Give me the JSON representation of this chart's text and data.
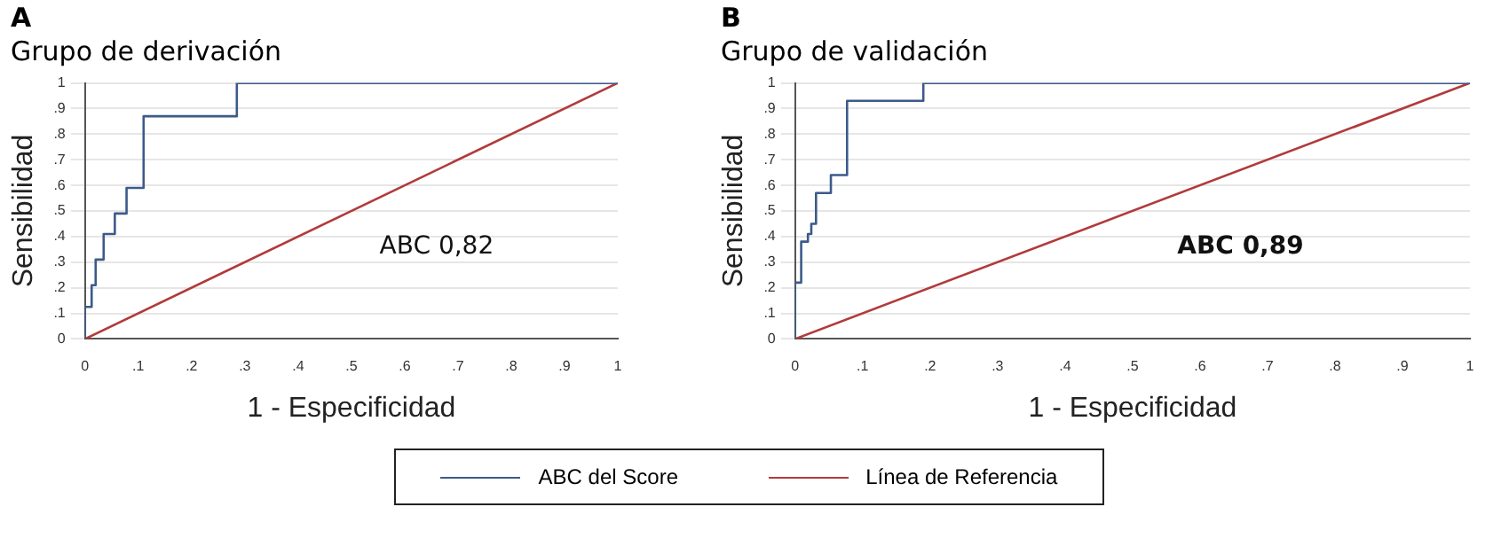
{
  "chart_data": [
    {
      "type": "line",
      "title": "A",
      "subtitle": "Grupo de derivación",
      "xlabel": "1 - Especificidad",
      "ylabel": "Sensibilidad",
      "xlim": [
        0,
        1
      ],
      "ylim": [
        0,
        1
      ],
      "xticks": [
        {
          "value": 0,
          "label": "0"
        },
        {
          "value": 0.1,
          "label": ".1"
        },
        {
          "value": 0.2,
          "label": ".2"
        },
        {
          "value": 0.3,
          "label": ".3"
        },
        {
          "value": 0.4,
          "label": ".4"
        },
        {
          "value": 0.5,
          "label": ".5"
        },
        {
          "value": 0.6,
          "label": ".6"
        },
        {
          "value": 0.7,
          "label": ".7"
        },
        {
          "value": 0.8,
          "label": ".8"
        },
        {
          "value": 0.9,
          "label": ".9"
        },
        {
          "value": 1,
          "label": "1"
        }
      ],
      "yticks": [
        {
          "value": 0,
          "label": "0"
        },
        {
          "value": 0.1,
          "label": ".1"
        },
        {
          "value": 0.2,
          "label": ".2"
        },
        {
          "value": 0.3,
          "label": ".3"
        },
        {
          "value": 0.4,
          "label": ".4"
        },
        {
          "value": 0.5,
          "label": ".5"
        },
        {
          "value": 0.6,
          "label": ".6"
        },
        {
          "value": 0.7,
          "label": ".7"
        },
        {
          "value": 0.8,
          "label": ".8"
        },
        {
          "value": 0.9,
          "label": ".9"
        },
        {
          "value": 1,
          "label": "1"
        }
      ],
      "grid": "y",
      "legend": "bottom",
      "marker": "none",
      "annotations": [
        "ABC 0,82"
      ],
      "series": [
        {
          "name": "ABC del Score",
          "type": "step",
          "color": "#3c5a8a",
          "x": [
            0,
            0.0125,
            0.02,
            0.035,
            0.056,
            0.078,
            0.11,
            0.285,
            0.53,
            1
          ],
          "values": [
            0,
            0.125,
            0.21,
            0.31,
            0.41,
            0.49,
            0.59,
            0.87,
            1,
            1
          ]
        },
        {
          "name": "Línea de Referencia",
          "type": "line",
          "color": "#b23a3a",
          "x": [
            0,
            1
          ],
          "values": [
            0,
            1
          ]
        }
      ]
    },
    {
      "type": "line",
      "title": "B",
      "subtitle": "Grupo de validación",
      "xlabel": "1 - Especificidad",
      "ylabel": "Sensibilidad",
      "xlim": [
        0,
        1
      ],
      "ylim": [
        0,
        1
      ],
      "xticks": [
        {
          "value": 0,
          "label": "0"
        },
        {
          "value": 0.1,
          "label": ".1"
        },
        {
          "value": 0.2,
          "label": ".2"
        },
        {
          "value": 0.3,
          "label": ".3"
        },
        {
          "value": 0.4,
          "label": ".4"
        },
        {
          "value": 0.5,
          "label": ".5"
        },
        {
          "value": 0.6,
          "label": ".6"
        },
        {
          "value": 0.7,
          "label": ".7"
        },
        {
          "value": 0.8,
          "label": ".8"
        },
        {
          "value": 0.9,
          "label": ".9"
        },
        {
          "value": 1,
          "label": "1"
        }
      ],
      "yticks": [
        {
          "value": 0,
          "label": "0"
        },
        {
          "value": 0.1,
          "label": ".1"
        },
        {
          "value": 0.2,
          "label": ".2"
        },
        {
          "value": 0.3,
          "label": ".3"
        },
        {
          "value": 0.4,
          "label": ".4"
        },
        {
          "value": 0.5,
          "label": ".5"
        },
        {
          "value": 0.6,
          "label": ".6"
        },
        {
          "value": 0.7,
          "label": ".7"
        },
        {
          "value": 0.8,
          "label": ".8"
        },
        {
          "value": 0.9,
          "label": ".9"
        },
        {
          "value": 1,
          "label": "1"
        }
      ],
      "grid": "y",
      "legend": "bottom",
      "marker": "none",
      "annotations": [
        "ABC 0,89"
      ],
      "series": [
        {
          "name": "ABC del Score",
          "type": "step",
          "color": "#3c5a8a",
          "x": [
            0,
            0.009,
            0.019,
            0.024,
            0.031,
            0.053,
            0.077,
            0.19,
            0.415,
            1
          ],
          "values": [
            0,
            0.22,
            0.38,
            0.41,
            0.45,
            0.57,
            0.64,
            0.93,
            1,
            1
          ]
        },
        {
          "name": "Línea de Referencia",
          "type": "line",
          "color": "#b23a3a",
          "x": [
            0,
            1
          ],
          "values": [
            0,
            1
          ]
        }
      ]
    }
  ]
}
